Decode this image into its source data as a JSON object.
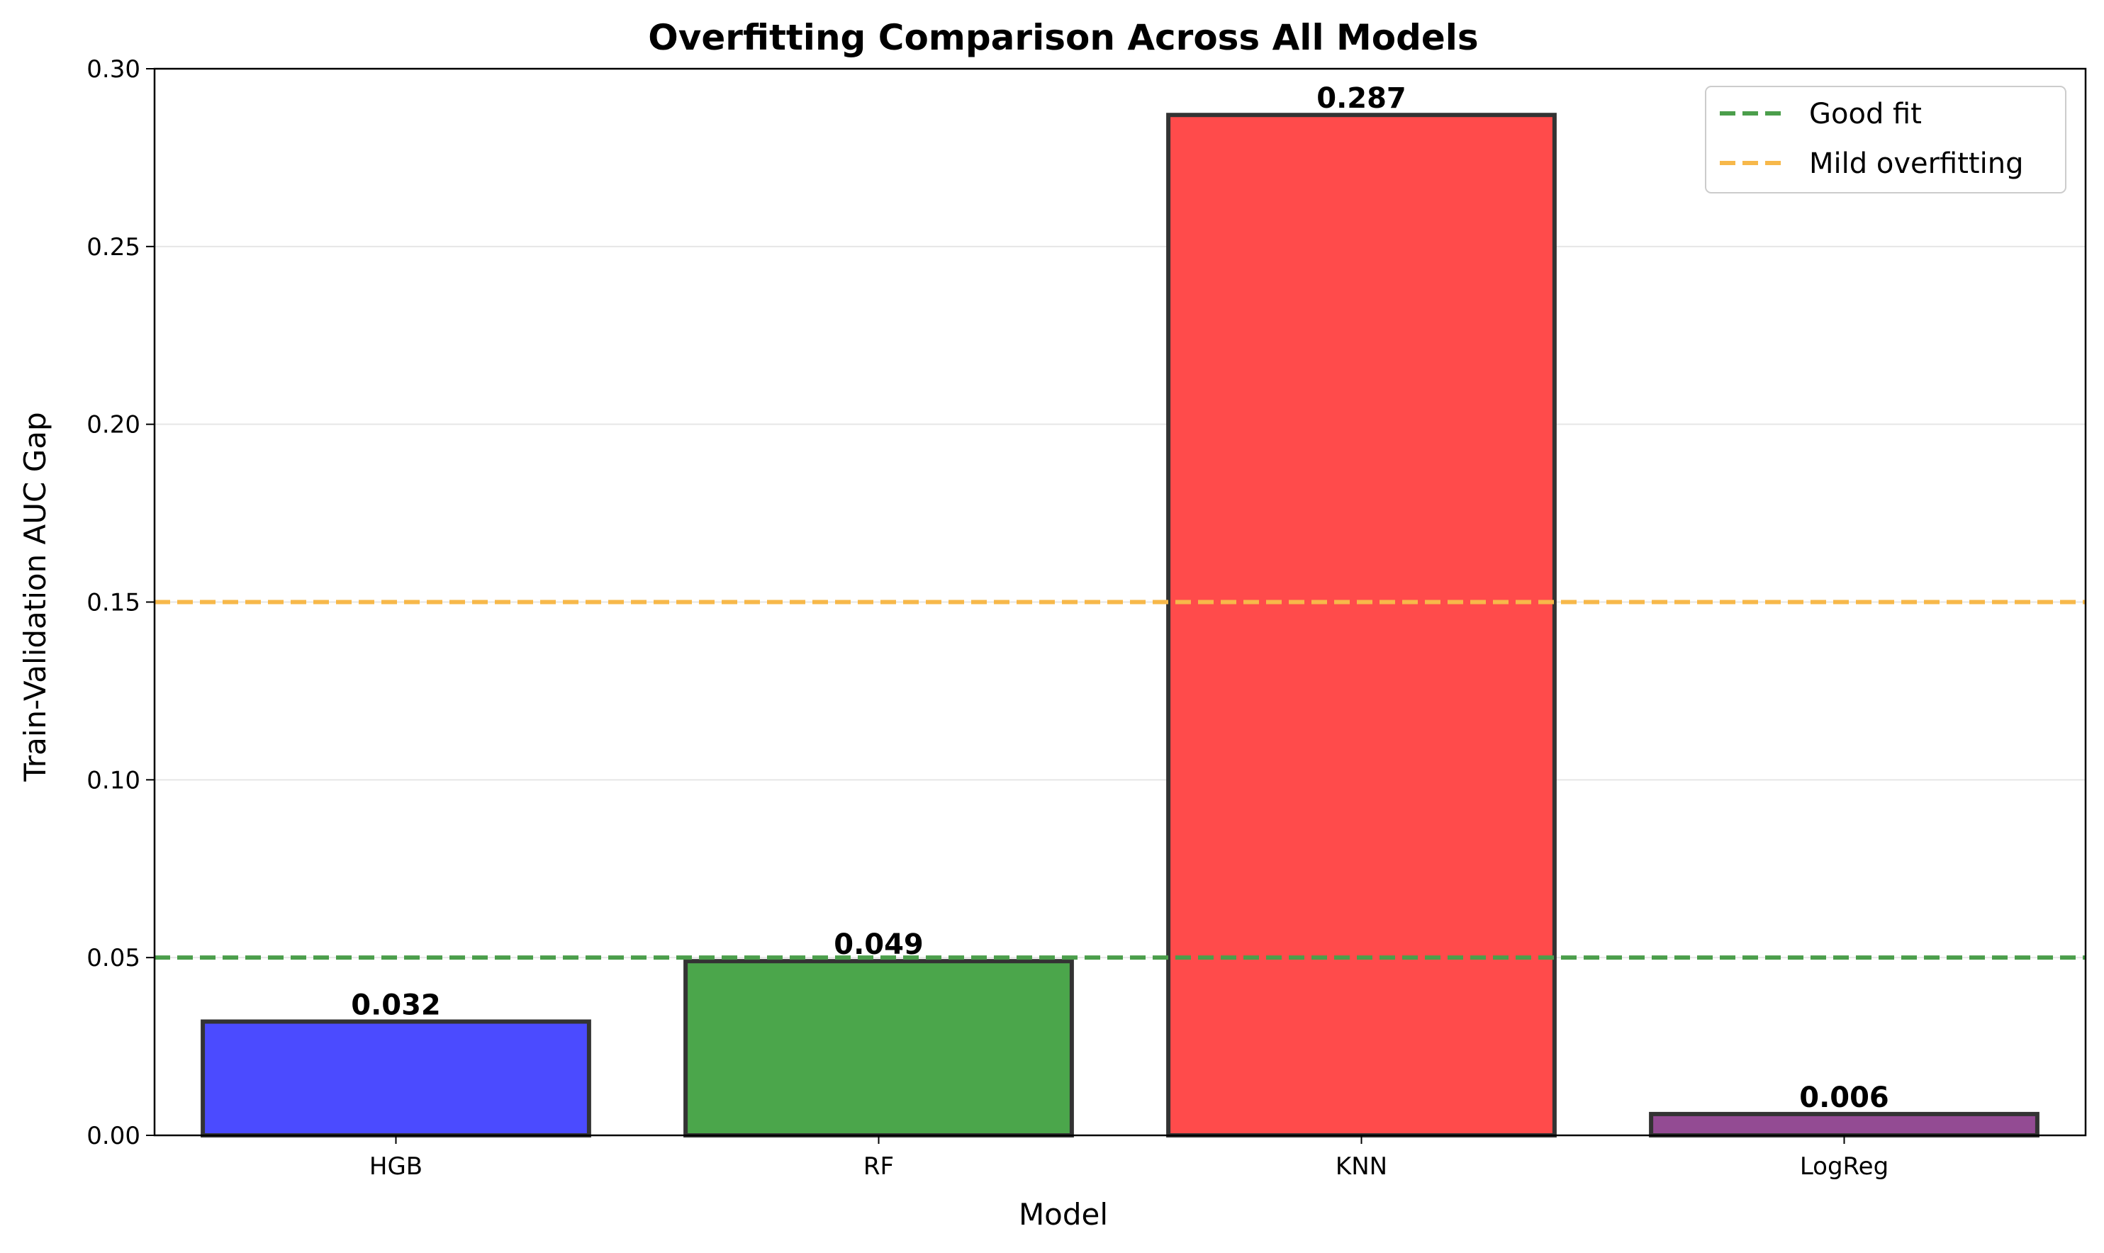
{
  "chart_data": {
    "type": "bar",
    "title": "Overfitting Comparison Across All Models",
    "xlabel": "Model",
    "ylabel": "Train-Validation AUC Gap",
    "categories": [
      "HGB",
      "RF",
      "KNN",
      "LogReg"
    ],
    "values": [
      0.032,
      0.049,
      0.287,
      0.006
    ],
    "value_labels": [
      "0.032",
      "0.049",
      "0.287",
      "0.006"
    ],
    "bar_colors": [
      "#4b4bff",
      "#4ba64b",
      "#ff4b4b",
      "#934b93"
    ],
    "bar_edge_color": "#333333",
    "ylim": [
      0,
      0.3
    ],
    "yticks": [
      0.0,
      0.05,
      0.1,
      0.15,
      0.2,
      0.25,
      0.3
    ],
    "ytick_labels": [
      "0.00",
      "0.05",
      "0.10",
      "0.15",
      "0.20",
      "0.25",
      "0.30"
    ],
    "grid": "y",
    "reference_lines": [
      {
        "name": "Good fit",
        "y": 0.05,
        "color": "#4b9e4b"
      },
      {
        "name": "Mild overfitting",
        "y": 0.15,
        "color": "#f7b84a"
      }
    ],
    "legend_position": "top-right"
  }
}
